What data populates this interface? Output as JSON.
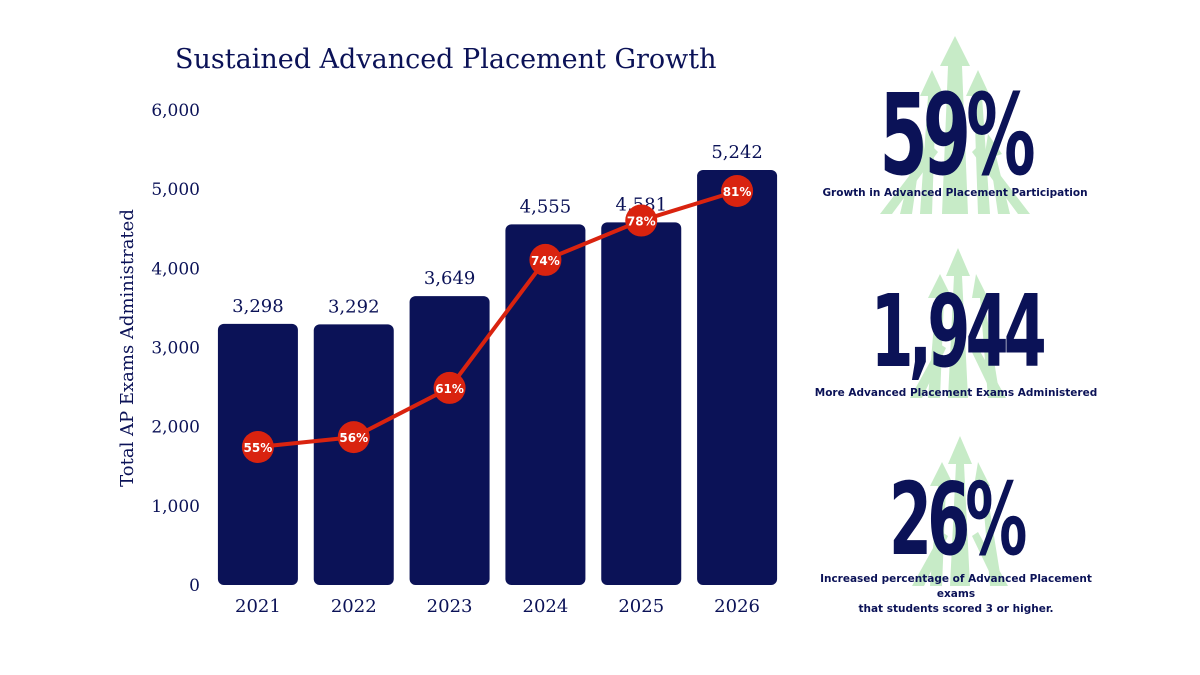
{
  "chart_data": {
    "type": "bar",
    "title": "Sustained Advanced Placement Growth",
    "ylabel": "Total AP Exams Administrated",
    "xlabel": "",
    "ylim": [
      0,
      6000
    ],
    "yticks": [
      0,
      1000,
      2000,
      3000,
      4000,
      5000,
      6000
    ],
    "ytick_labels": [
      "0",
      "1,000",
      "2,000",
      "3,000",
      "4,000",
      "5,000",
      "6,000"
    ],
    "categories": [
      "2021",
      "2022",
      "2023",
      "2024",
      "2025",
      "2026"
    ],
    "series": [
      {
        "type": "bar",
        "values": [
          3298,
          3292,
          3649,
          4555,
          4581,
          5242
        ],
        "labels": [
          "3,298",
          "3,292",
          "3,649",
          "4,555",
          "4,581",
          "5,242"
        ],
        "color": "#0b1257"
      },
      {
        "type": "line",
        "values": [
          55,
          56,
          61,
          74,
          78,
          81
        ],
        "labels": [
          "55%",
          "56%",
          "61%",
          "74%",
          "78%",
          "81%"
        ],
        "color": "#d9230f",
        "unit": "%",
        "ylim": [
          0,
          100
        ]
      }
    ],
    "grid": false,
    "legend": "none"
  },
  "stats": [
    {
      "value": "59%",
      "caption_lines": [
        "Growth in Advanced Placement Participation"
      ]
    },
    {
      "value": "1,944",
      "caption_lines": [
        "More Advanced Placement Exams Administered"
      ]
    },
    {
      "value": "26%",
      "caption_lines": [
        "Increased percentage of Advanced Placement exams",
        "that students scored 3 or higher."
      ]
    }
  ],
  "colors": {
    "navy": "#0b1257",
    "red": "#d9230f",
    "arrow_green": "#c7ebc7"
  },
  "icons": [
    "growth-arrows-icon"
  ]
}
